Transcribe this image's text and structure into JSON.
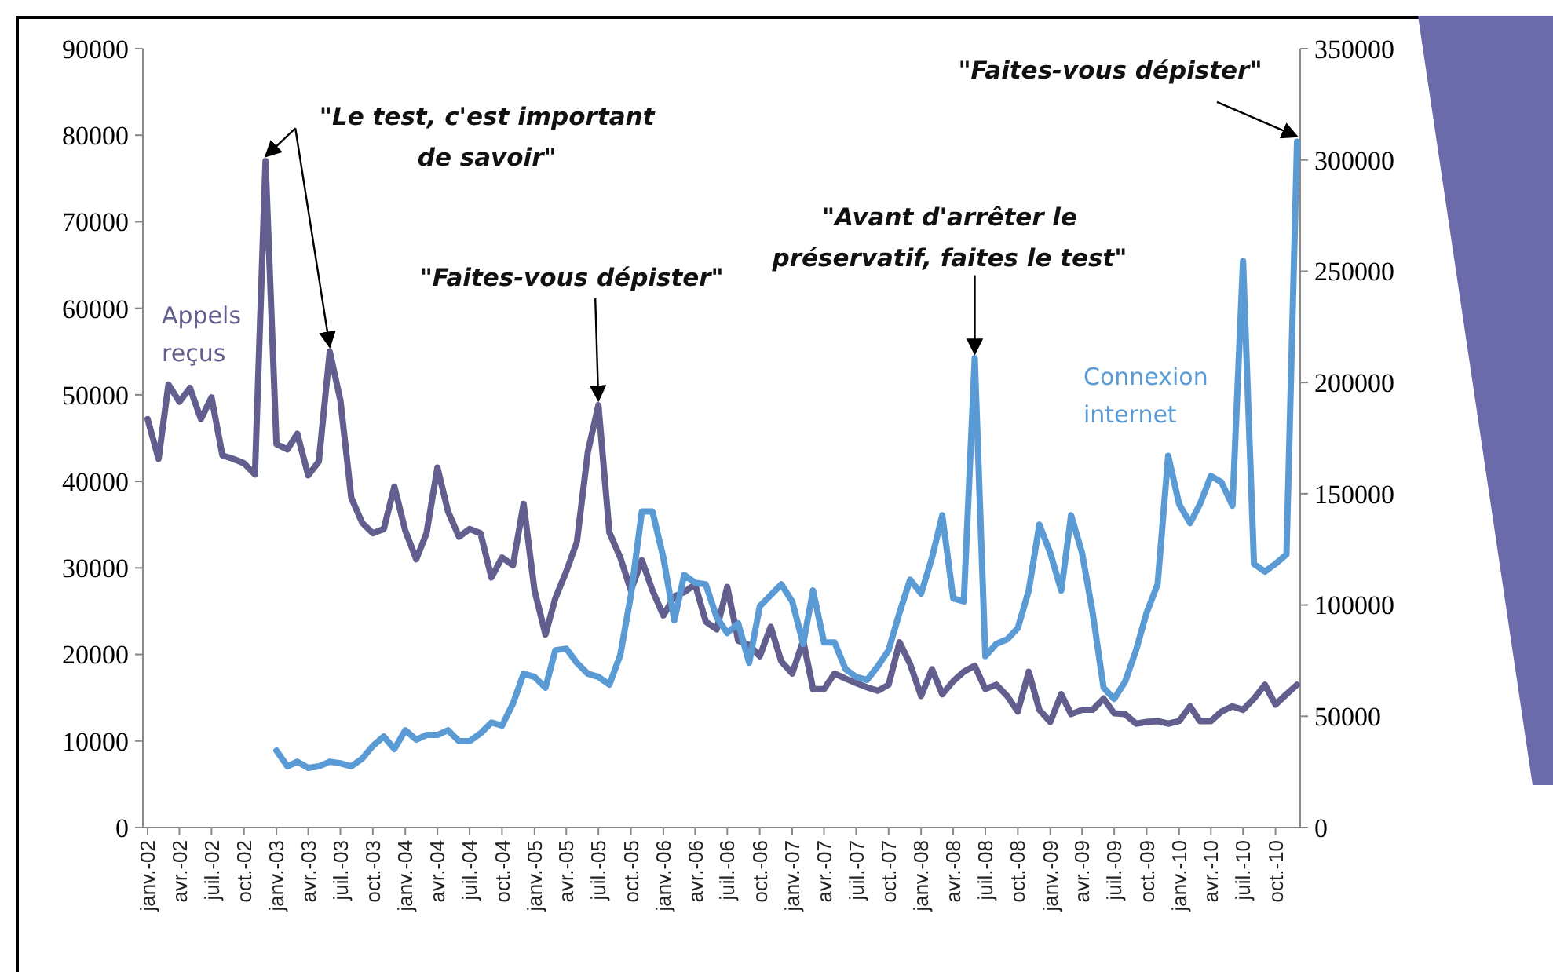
{
  "chart_data": {
    "type": "line",
    "x": [
      "2002-01",
      "2002-02",
      "2002-03",
      "2002-04",
      "2002-05",
      "2002-06",
      "2002-07",
      "2002-08",
      "2002-09",
      "2002-10",
      "2002-11",
      "2002-12",
      "2003-01",
      "2003-02",
      "2003-03",
      "2003-04",
      "2003-05",
      "2003-06",
      "2003-07",
      "2003-08",
      "2003-09",
      "2003-10",
      "2003-11",
      "2003-12",
      "2004-01",
      "2004-02",
      "2004-03",
      "2004-04",
      "2004-05",
      "2004-06",
      "2004-07",
      "2004-08",
      "2004-09",
      "2004-10",
      "2004-11",
      "2004-12",
      "2005-01",
      "2005-02",
      "2005-03",
      "2005-04",
      "2005-05",
      "2005-06",
      "2005-07",
      "2005-08",
      "2005-09",
      "2005-10",
      "2005-11",
      "2005-12",
      "2006-01",
      "2006-02",
      "2006-03",
      "2006-04",
      "2006-05",
      "2006-06",
      "2006-07",
      "2006-08",
      "2006-09",
      "2006-10",
      "2006-11",
      "2006-12",
      "2007-01",
      "2007-02",
      "2007-03",
      "2007-04",
      "2007-05",
      "2007-06",
      "2007-07",
      "2007-08",
      "2007-09",
      "2007-10",
      "2007-11",
      "2007-12",
      "2008-01",
      "2008-02",
      "2008-03",
      "2008-04",
      "2008-05",
      "2008-06",
      "2008-07",
      "2008-08",
      "2008-09",
      "2008-10",
      "2008-11",
      "2008-12",
      "2009-01",
      "2009-02",
      "2009-03",
      "2009-04",
      "2009-05",
      "2009-06",
      "2009-07",
      "2009-08",
      "2009-09",
      "2009-10",
      "2009-11",
      "2009-12",
      "2010-01",
      "2010-02",
      "2010-03",
      "2010-04",
      "2010-05",
      "2010-06",
      "2010-07",
      "2010-08",
      "2010-09",
      "2010-10",
      "2010-11",
      "2010-12"
    ],
    "xlim": [
      "2002-01",
      "2010-12"
    ],
    "xticks": [
      {
        "value": "2002-01",
        "label": "janv.-02"
      },
      {
        "value": "2002-04",
        "label": "avr.-02"
      },
      {
        "value": "2002-07",
        "label": "juil.-02"
      },
      {
        "value": "2002-10",
        "label": "oct.-02"
      },
      {
        "value": "2003-01",
        "label": "janv.-03"
      },
      {
        "value": "2003-04",
        "label": "avr.-03"
      },
      {
        "value": "2003-07",
        "label": "juil.-03"
      },
      {
        "value": "2003-10",
        "label": "oct.-03"
      },
      {
        "value": "2004-01",
        "label": "janv.-04"
      },
      {
        "value": "2004-04",
        "label": "avr.-04"
      },
      {
        "value": "2004-07",
        "label": "juil.-04"
      },
      {
        "value": "2004-10",
        "label": "oct.-04"
      },
      {
        "value": "2005-01",
        "label": "janv.-05"
      },
      {
        "value": "2005-04",
        "label": "avr.-05"
      },
      {
        "value": "2005-07",
        "label": "juil.-05"
      },
      {
        "value": "2005-10",
        "label": "oct.-05"
      },
      {
        "value": "2006-01",
        "label": "janv.-06"
      },
      {
        "value": "2006-04",
        "label": "avr.-06"
      },
      {
        "value": "2006-07",
        "label": "juil.-06"
      },
      {
        "value": "2006-10",
        "label": "oct.-06"
      },
      {
        "value": "2007-01",
        "label": "janv.-07"
      },
      {
        "value": "2007-04",
        "label": "avr.-07"
      },
      {
        "value": "2007-07",
        "label": "juil.-07"
      },
      {
        "value": "2007-10",
        "label": "oct.-07"
      },
      {
        "value": "2008-01",
        "label": "janv.-08"
      },
      {
        "value": "2008-04",
        "label": "avr.-08"
      },
      {
        "value": "2008-07",
        "label": "juil.-08"
      },
      {
        "value": "2008-10",
        "label": "oct.-08"
      },
      {
        "value": "2009-01",
        "label": "janv.-09"
      },
      {
        "value": "2009-04",
        "label": "avr.-09"
      },
      {
        "value": "2009-07",
        "label": "juil.-09"
      },
      {
        "value": "2009-10",
        "label": "oct.-09"
      },
      {
        "value": "2010-01",
        "label": "janv.-10"
      },
      {
        "value": "2010-04",
        "label": "avr.-10"
      },
      {
        "value": "2010-07",
        "label": "juil.-10"
      },
      {
        "value": "2010-10",
        "label": "oct.-10"
      }
    ],
    "ylim": [
      0,
      90000
    ],
    "yticks": [
      0,
      10000,
      20000,
      30000,
      40000,
      50000,
      60000,
      70000,
      80000,
      90000
    ],
    "y2lim": [
      0,
      350000
    ],
    "y2ticks": [
      0,
      50000,
      100000,
      150000,
      200000,
      250000,
      300000,
      350000
    ],
    "series": [
      {
        "name": "Appels reçus",
        "color": "#625f8e",
        "values": [
          47200,
          42600,
          51200,
          49200,
          50800,
          47200,
          49700,
          43000,
          42600,
          42100,
          40800,
          77000,
          44300,
          43700,
          45500,
          40700,
          42300,
          55000,
          49400,
          38100,
          35200,
          34000,
          34500,
          39400,
          34300,
          31000,
          34000,
          41600,
          36500,
          33600,
          34500,
          34000,
          28900,
          31200,
          30300,
          37400,
          27400,
          22300,
          26500,
          29600,
          33000,
          43400,
          48800,
          34100,
          31200,
          27400,
          30900,
          27400,
          24500,
          26700,
          27200,
          28100,
          23800,
          22900,
          27800,
          21600,
          21100,
          19800,
          23200,
          19200,
          17800,
          21600,
          16000,
          16000,
          17800,
          17200,
          16700,
          16200,
          15800,
          16500,
          21400,
          18900,
          15200,
          18300,
          15400,
          16900,
          18000,
          18700,
          16000,
          16500,
          15200,
          13400,
          18000,
          13600,
          12200,
          15400,
          13100,
          13600,
          13600,
          14900,
          13200,
          13100,
          12000,
          12200,
          12300,
          12000,
          12300,
          14000,
          12300,
          12300,
          13400,
          14000,
          13600,
          14900,
          16500,
          14200,
          15400,
          16500
        ]
      },
      {
        "name": "Connexion internet",
        "color": "#5b9bd5",
        "axis": "y2",
        "values": [
          null,
          null,
          null,
          null,
          null,
          null,
          null,
          null,
          null,
          null,
          null,
          null,
          34600,
          27500,
          29600,
          26800,
          27500,
          29600,
          28900,
          27500,
          31000,
          36700,
          40900,
          35300,
          43700,
          39500,
          41600,
          41600,
          43700,
          38800,
          38800,
          42300,
          47200,
          45800,
          55700,
          69100,
          67700,
          62800,
          79700,
          80400,
          74000,
          69100,
          67700,
          64200,
          77600,
          104400,
          142000,
          142000,
          121300,
          93100,
          113500,
          110000,
          109300,
          94500,
          87400,
          91700,
          74000,
          99400,
          104400,
          109300,
          101600,
          82500,
          106500,
          83200,
          83200,
          71200,
          67700,
          66300,
          72600,
          79700,
          96600,
          111400,
          105100,
          121300,
          140300,
          103000,
          101600,
          210900,
          77000,
          82500,
          84600,
          89600,
          106500,
          136100,
          123400,
          106500,
          140300,
          123400,
          96600,
          62800,
          57800,
          65600,
          79700,
          96600,
          109300,
          167100,
          145300,
          136800,
          145300,
          158000,
          155200,
          144600,
          254600,
          118500,
          115000,
          118500,
          122700,
          308200
        ]
      }
    ],
    "annotations": [
      {
        "text": "\"Le test, c'est important de savoir\"",
        "x": "2002-12",
        "y": 77000
      },
      {
        "text": "\"Faites-vous dépister\"",
        "x": "2005-07",
        "y": 48800
      },
      {
        "text": "\"Avant d'arrêter le préservatif, faites le test\"",
        "x": "2008-06",
        "y": 54200
      },
      {
        "text": "\"Faites-vous dépister\"",
        "x": "2010-12",
        "y": 79300
      }
    ]
  }
}
